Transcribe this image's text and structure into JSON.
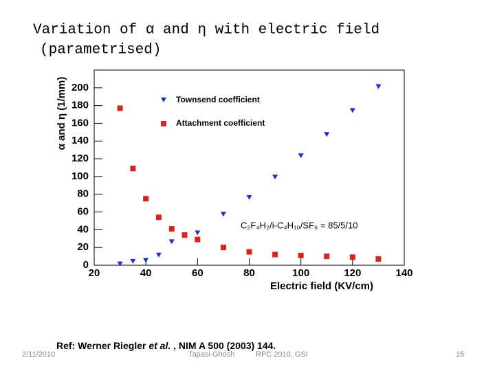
{
  "slide": {
    "title_lines": [
      "Variation of α and η with electric field",
      "(parametrised)"
    ],
    "date": "2/11/2010",
    "reference": [
      "Ref: Werner Riegler ",
      "et al.",
      " , NIM A 500 (2003) 144."
    ],
    "author": "Tapasi Ghosh",
    "venue": "RPC 2010, GSI",
    "page": "15"
  },
  "chart_data": {
    "type": "scatter",
    "xlabel": "Electric field (KV/cm)",
    "ylabel": "α and η (1/mm)",
    "annotation": "C₂F₄H₂/i-C₄H₁₀/SF₆ = 85/5/10",
    "x": [
      30,
      35,
      40,
      45,
      50,
      55,
      60,
      70,
      80,
      90,
      100,
      110,
      120,
      130
    ],
    "series": [
      {
        "name": "Townsend coefficient",
        "color": "#1a2fd0",
        "marker": "triangle-down",
        "values": [
          1,
          4,
          5,
          11,
          26,
          null,
          36,
          57,
          76,
          99,
          123,
          147,
          174,
          201
        ]
      },
      {
        "name": "Attachment coefficient",
        "color": "#e0201b",
        "marker": "square",
        "values": [
          177,
          109,
          75,
          54,
          41,
          34,
          29,
          20,
          15,
          12,
          11,
          10,
          9,
          7
        ]
      }
    ],
    "xlim": [
      20,
      140
    ],
    "xticks": [
      20,
      40,
      60,
      80,
      100,
      120,
      140
    ],
    "ylim": [
      0,
      220
    ],
    "yticks": [
      0,
      20,
      40,
      60,
      80,
      100,
      120,
      140,
      160,
      180,
      200
    ],
    "legend": "upper-left"
  }
}
